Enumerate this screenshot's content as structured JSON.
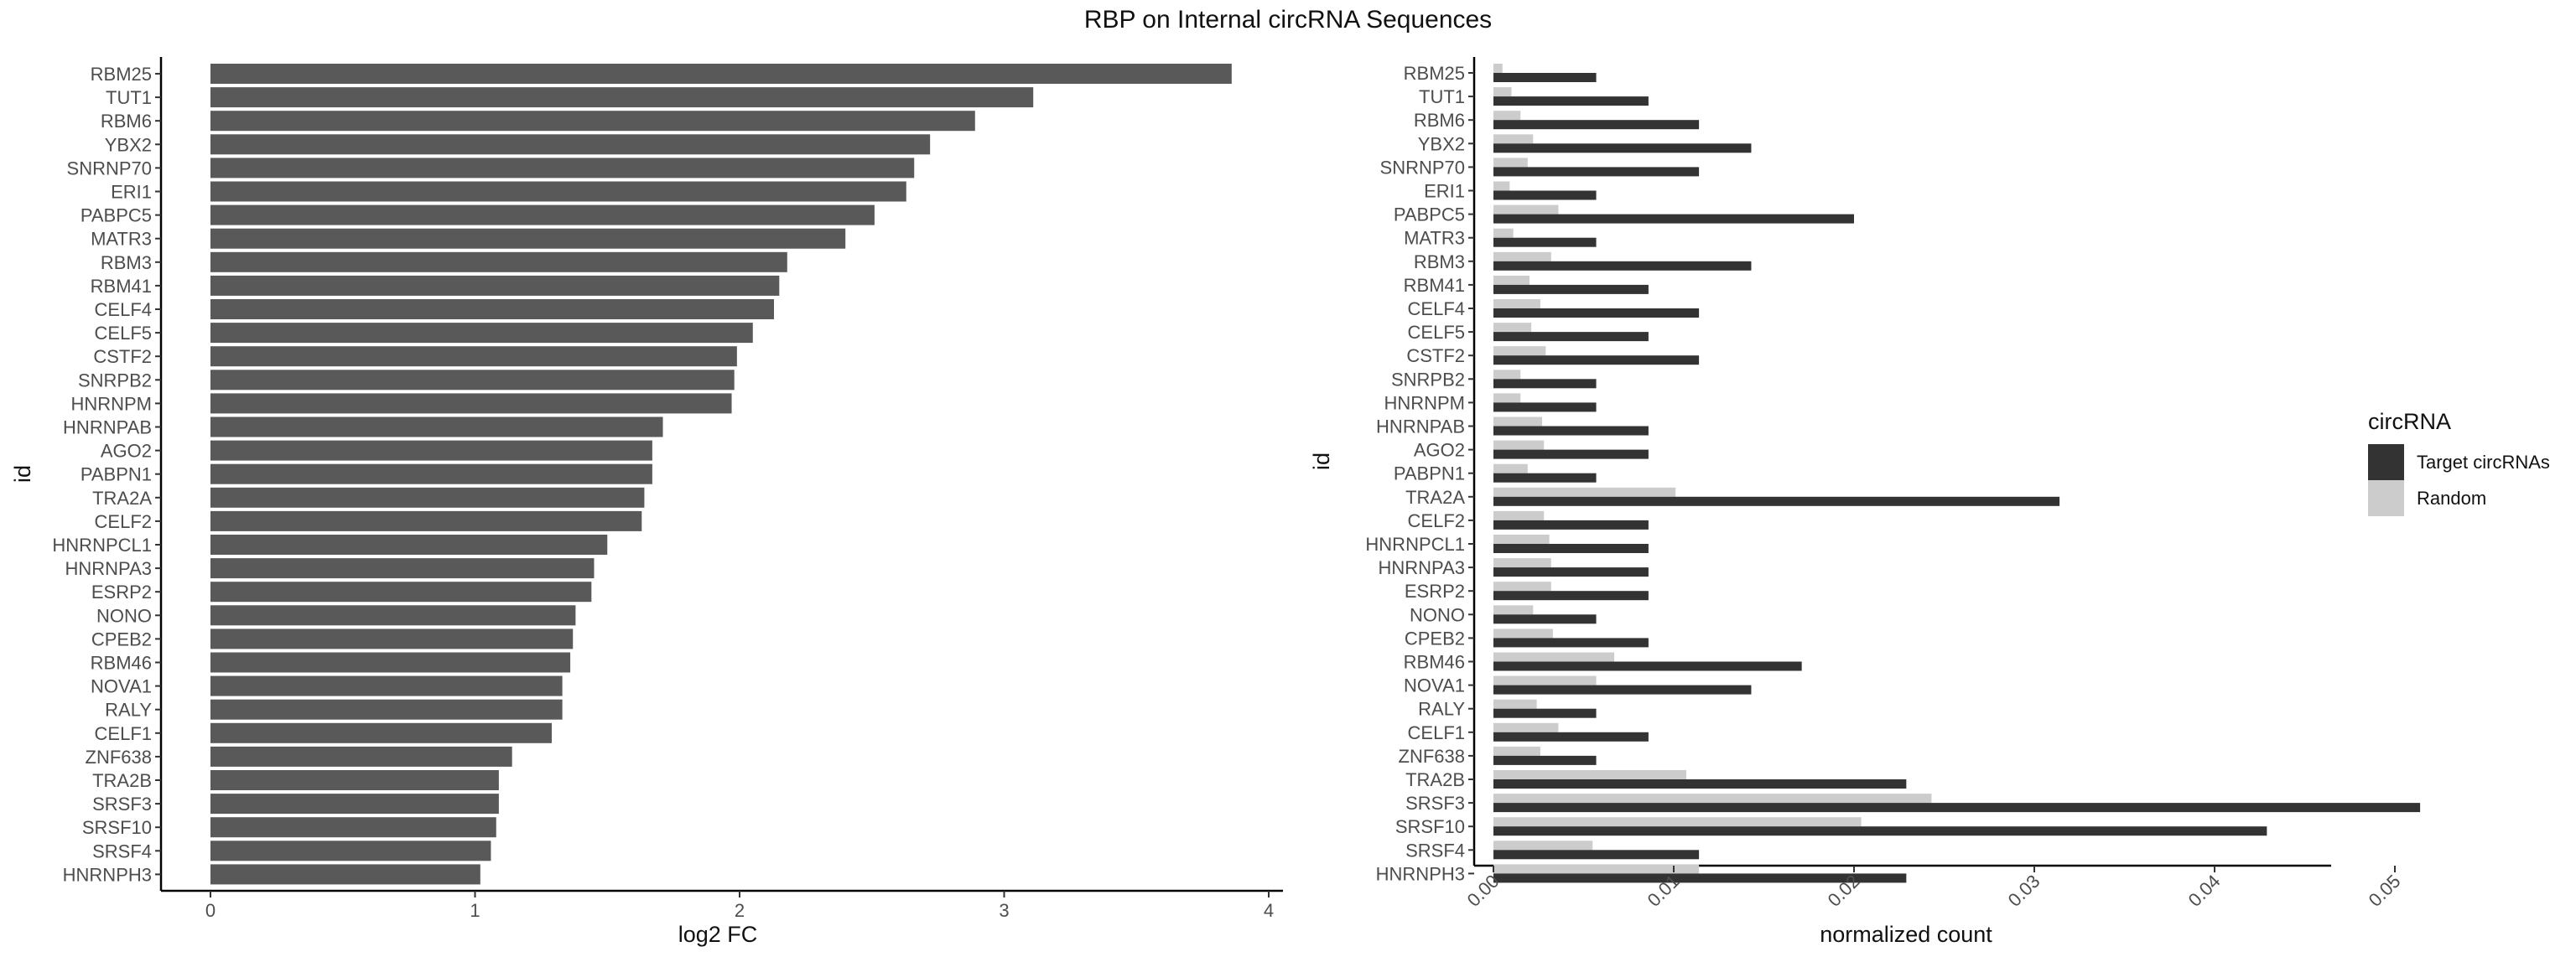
{
  "title": "RBP on Internal circRNA Sequences",
  "chart_data": [
    {
      "type": "bar",
      "orientation": "horizontal",
      "xlabel": "log2 FC",
      "ylabel": "id",
      "xlim": [
        0,
        4
      ],
      "xticks": [
        "0",
        "1",
        "2",
        "3",
        "4"
      ],
      "grid": false,
      "color": "#595959",
      "categories": [
        "RBM25",
        "TUT1",
        "RBM6",
        "YBX2",
        "SNRNP70",
        "ERI1",
        "PABPC5",
        "MATR3",
        "RBM3",
        "RBM41",
        "CELF4",
        "CELF5",
        "CSTF2",
        "SNRPB2",
        "HNRNPM",
        "HNRNPAB",
        "AGO2",
        "PABPN1",
        "TRA2A",
        "CELF2",
        "HNRNPCL1",
        "HNRNPA3",
        "ESRP2",
        "NONO",
        "CPEB2",
        "RBM46",
        "NOVA1",
        "RALY",
        "CELF1",
        "ZNF638",
        "TRA2B",
        "SRSF3",
        "SRSF10",
        "SRSF4",
        "HNRNPH3"
      ],
      "values": [
        3.86,
        3.11,
        2.89,
        2.72,
        2.66,
        2.63,
        2.51,
        2.4,
        2.18,
        2.15,
        2.13,
        2.05,
        1.99,
        1.98,
        1.97,
        1.71,
        1.67,
        1.67,
        1.64,
        1.63,
        1.5,
        1.45,
        1.44,
        1.38,
        1.37,
        1.36,
        1.33,
        1.33,
        1.29,
        1.14,
        1.09,
        1.09,
        1.08,
        1.06,
        1.02
      ]
    },
    {
      "type": "bar",
      "orientation": "horizontal",
      "grouped": true,
      "xlabel": "normalized count",
      "ylabel": "id",
      "xlim": [
        0,
        0.0533
      ],
      "xticks": [
        "0.00",
        "0.01",
        "0.02",
        "0.03",
        "0.04",
        "0.05"
      ],
      "xtick_label_rotation": -45,
      "grid": false,
      "legend": {
        "title": "circRNA",
        "position": "right"
      },
      "categories": [
        "RBM25",
        "TUT1",
        "RBM6",
        "YBX2",
        "SNRNP70",
        "ERI1",
        "PABPC5",
        "MATR3",
        "RBM3",
        "RBM41",
        "CELF4",
        "CELF5",
        "CSTF2",
        "SNRPB2",
        "HNRNPM",
        "HNRNPAB",
        "AGO2",
        "PABPN1",
        "TRA2A",
        "CELF2",
        "HNRNPCL1",
        "HNRNPA3",
        "ESRP2",
        "NONO",
        "CPEB2",
        "RBM46",
        "NOVA1",
        "RALY",
        "CELF1",
        "ZNF638",
        "TRA2B",
        "SRSF3",
        "SRSF10",
        "SRSF4",
        "HNRNPH3"
      ],
      "series": [
        {
          "name": "Target circRNAs",
          "color": "#333333",
          "values": [
            0.0057,
            0.0086,
            0.0114,
            0.0143,
            0.0114,
            0.0057,
            0.02,
            0.0057,
            0.0143,
            0.0086,
            0.0114,
            0.0086,
            0.0114,
            0.0057,
            0.0057,
            0.0086,
            0.0086,
            0.0057,
            0.0314,
            0.0086,
            0.0086,
            0.0086,
            0.0086,
            0.0057,
            0.0086,
            0.0171,
            0.0143,
            0.0057,
            0.0086,
            0.0057,
            0.0229,
            0.0514,
            0.0429,
            0.0114,
            0.0229
          ]
        },
        {
          "name": "Random",
          "color": "#cccccc",
          "values": [
            0.0005,
            0.001,
            0.0015,
            0.0022,
            0.0019,
            0.0009,
            0.0036,
            0.0011,
            0.0032,
            0.002,
            0.0026,
            0.0021,
            0.0029,
            0.0015,
            0.0015,
            0.0027,
            0.0028,
            0.0019,
            0.0101,
            0.0028,
            0.0031,
            0.0032,
            0.0032,
            0.0022,
            0.0033,
            0.0067,
            0.0057,
            0.0024,
            0.0036,
            0.0026,
            0.0107,
            0.0243,
            0.0204,
            0.0055,
            0.0114
          ]
        }
      ]
    }
  ]
}
